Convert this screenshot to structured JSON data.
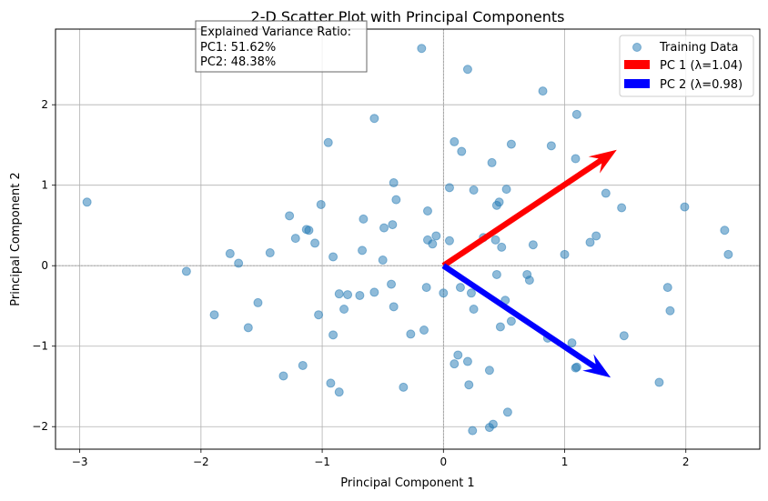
{
  "chart_data": {
    "type": "scatter",
    "title": "2-D Scatter Plot with Principal Components",
    "xlabel": "Principal Component 1",
    "ylabel": "Principal Component 2",
    "xlim": [
      -3.2,
      2.61
    ],
    "ylim": [
      -2.28,
      2.94
    ],
    "xticks": [
      -3,
      -2,
      -1,
      0,
      1,
      2
    ],
    "yticks": [
      -2,
      -1,
      0,
      1,
      2
    ],
    "grid": true,
    "legend_position": "top-right",
    "annotation": {
      "lines": [
        "Explained Variance Ratio:",
        "PC1: 51.62%",
        "PC2: 48.38%"
      ]
    },
    "series": [
      {
        "name": "Training Data",
        "color": "#1f77b4",
        "alpha": 0.5,
        "points": [
          [
            -0.18,
            2.7
          ],
          [
            0.2,
            2.44
          ],
          [
            -0.57,
            1.83
          ],
          [
            -0.95,
            1.53
          ],
          [
            0.09,
            1.54
          ],
          [
            0.15,
            1.42
          ],
          [
            -0.41,
            1.03
          ],
          [
            0.05,
            0.97
          ],
          [
            0.25,
            0.94
          ],
          [
            -0.39,
            0.82
          ],
          [
            -1.01,
            0.76
          ],
          [
            -1.27,
            0.62
          ],
          [
            -0.13,
            0.68
          ],
          [
            -0.66,
            0.58
          ],
          [
            -0.49,
            0.47
          ],
          [
            -0.42,
            0.51
          ],
          [
            -1.13,
            0.45
          ],
          [
            -1.11,
            0.44
          ],
          [
            -1.22,
            0.34
          ],
          [
            -0.06,
            0.37
          ],
          [
            -0.13,
            0.32
          ],
          [
            -0.09,
            0.27
          ],
          [
            0.05,
            0.31
          ],
          [
            -1.06,
            0.28
          ],
          [
            -1.76,
            0.15
          ],
          [
            -1.43,
            0.16
          ],
          [
            -0.67,
            0.19
          ],
          [
            -1.69,
            0.03
          ],
          [
            -0.91,
            0.11
          ],
          [
            -0.5,
            0.07
          ],
          [
            -2.12,
            -0.07
          ],
          [
            -0.43,
            -0.23
          ],
          [
            -0.14,
            -0.27
          ],
          [
            0.0,
            -0.34
          ],
          [
            0.14,
            -0.27
          ],
          [
            0.23,
            -0.34
          ],
          [
            -0.86,
            -0.35
          ],
          [
            -0.79,
            -0.36
          ],
          [
            -0.69,
            -0.37
          ],
          [
            -0.57,
            -0.33
          ],
          [
            -1.53,
            -0.46
          ],
          [
            -0.82,
            -0.54
          ],
          [
            -0.41,
            -0.51
          ],
          [
            0.25,
            -0.54
          ],
          [
            -1.89,
            -0.61
          ],
          [
            -1.03,
            -0.61
          ],
          [
            -1.61,
            -0.77
          ],
          [
            -0.91,
            -0.86
          ],
          [
            -0.27,
            -0.85
          ],
          [
            -0.16,
            -0.8
          ],
          [
            0.12,
            -1.11
          ],
          [
            0.09,
            -1.22
          ],
          [
            0.2,
            -1.19
          ],
          [
            0.21,
            -1.48
          ],
          [
            -1.16,
            -1.24
          ],
          [
            -1.32,
            -1.37
          ],
          [
            -0.93,
            -1.46
          ],
          [
            -0.86,
            -1.57
          ],
          [
            -0.33,
            -1.51
          ],
          [
            0.24,
            -2.05
          ],
          [
            -2.94,
            0.79
          ],
          [
            0.4,
            1.28
          ],
          [
            0.56,
            1.51
          ],
          [
            0.82,
            2.17
          ],
          [
            0.89,
            1.49
          ],
          [
            1.1,
            1.88
          ],
          [
            1.09,
            1.33
          ],
          [
            0.52,
            0.95
          ],
          [
            0.46,
            0.79
          ],
          [
            0.44,
            0.75
          ],
          [
            1.34,
            0.9
          ],
          [
            1.47,
            0.72
          ],
          [
            1.99,
            0.73
          ],
          [
            2.32,
            0.44
          ],
          [
            2.35,
            0.14
          ],
          [
            0.33,
            0.35
          ],
          [
            0.43,
            0.32
          ],
          [
            0.48,
            0.23
          ],
          [
            0.74,
            0.26
          ],
          [
            1.0,
            0.14
          ],
          [
            1.26,
            0.37
          ],
          [
            1.21,
            0.29
          ],
          [
            0.44,
            -0.11
          ],
          [
            0.69,
            -0.11
          ],
          [
            0.71,
            -0.18
          ],
          [
            0.51,
            -0.43
          ],
          [
            0.56,
            -0.69
          ],
          [
            0.47,
            -0.76
          ],
          [
            0.86,
            -0.9
          ],
          [
            1.06,
            -0.96
          ],
          [
            1.49,
            -0.87
          ],
          [
            1.85,
            -0.27
          ],
          [
            1.87,
            -0.56
          ],
          [
            1.09,
            -1.27
          ],
          [
            1.1,
            -1.26
          ],
          [
            1.78,
            -1.45
          ],
          [
            0.38,
            -1.3
          ],
          [
            0.53,
            -1.82
          ],
          [
            0.41,
            -1.97
          ],
          [
            0.38,
            -2.01
          ]
        ]
      }
    ],
    "arrows": [
      {
        "name": "PC 1 (λ=1.04)",
        "color": "#ff0000",
        "from": [
          0,
          0
        ],
        "to": [
          1.43,
          1.44
        ]
      },
      {
        "name": "PC 2 (λ=0.98)",
        "color": "#0000ff",
        "from": [
          0,
          0
        ],
        "to": [
          1.38,
          -1.39
        ]
      }
    ]
  }
}
